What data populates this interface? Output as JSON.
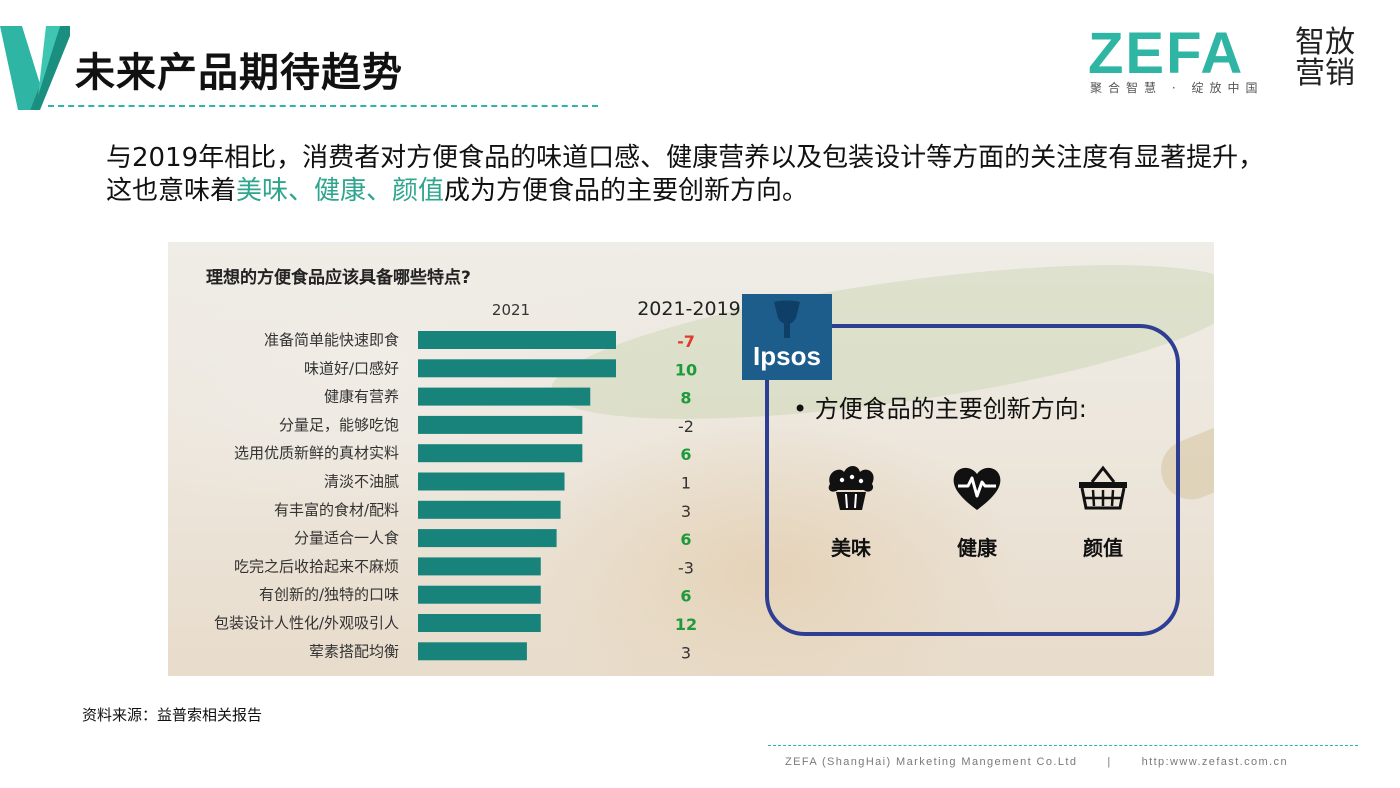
{
  "header": {
    "title": "未来产品期待趋势",
    "brand_wordmark": "ZEFA",
    "brand_cn": "智放营销",
    "brand_slogan": "聚合智慧 · 绽放中国"
  },
  "intro": {
    "part1": "与2019年相比，消费者对方便食品的味道口感、健康营养以及包装设计等方面的关注度有显著提升，这也意味着",
    "highlight": "美味、健康、颜值",
    "part2": "成为方便食品的主要创新方向。"
  },
  "chart_data": {
    "type": "bar",
    "orientation": "horizontal",
    "title": "理想的方便食品应该具备哪些特点?",
    "xlabel": "2021",
    "change_header": "2021-2019",
    "categories": [
      "准备简单能快速即食",
      "味道好/口感好",
      "健康有营养",
      "分量足，能够吃饱",
      "选用优质新鲜的真材实料",
      "清淡不油腻",
      "有丰富的食材/配料",
      "分量适合一人食",
      "吃完之后收拾起来不麻烦",
      "有创新的/独特的口味",
      "包装设计人性化/外观吸引人",
      "荤素搭配均衡"
    ],
    "values": [
      100,
      100,
      87,
      83,
      83,
      74,
      72,
      70,
      62,
      62,
      62,
      55
    ],
    "changes": [
      "-7",
      "10",
      "8",
      "-2",
      "6",
      "1",
      "3",
      "6",
      "-3",
      "6",
      "12",
      "3"
    ],
    "change_colors": [
      "#e03a2e",
      "#1f9a3a",
      "#1f9a3a",
      "#333333",
      "#1f9a3a",
      "#333333",
      "#333333",
      "#1f9a3a",
      "#333333",
      "#1f9a3a",
      "#1f9a3a",
      "#333333"
    ],
    "bar_color": "#17837a",
    "xlim": [
      0,
      100
    ]
  },
  "callout": {
    "logo_text": "Ipsos",
    "heading": "•  方便食品的主要创新方向:",
    "items": [
      {
        "label": "美味",
        "icon": "cupcake-icon"
      },
      {
        "label": "健康",
        "icon": "heart-pulse-icon"
      },
      {
        "label": "颜值",
        "icon": "basket-icon"
      }
    ]
  },
  "footer": {
    "source": "资料来源：益普索相关报告",
    "company": "ZEFA (ShangHai) Marketing Mangement Co.Ltd",
    "separator": "|",
    "url": "http:www.zefast.com.cn"
  },
  "colors": {
    "accent_teal": "#2fb5a3",
    "ipsos_blue": "#1d5d8c",
    "callout_border": "#2e3f93"
  }
}
